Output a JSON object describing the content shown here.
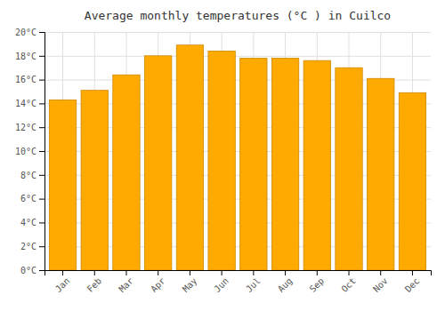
{
  "chart_data": {
    "type": "bar",
    "title": "Average monthly temperatures (°C ) in Cuilco",
    "categories": [
      "Jan",
      "Feb",
      "Mar",
      "Apr",
      "May",
      "Jun",
      "Jul",
      "Aug",
      "Sep",
      "Oct",
      "Nov",
      "Dec"
    ],
    "values": [
      14.3,
      15.1,
      16.4,
      18.0,
      18.9,
      18.4,
      17.8,
      17.8,
      17.6,
      17.0,
      16.1,
      14.9
    ],
    "color": "#FFAA00",
    "ylim": [
      0,
      20
    ],
    "yticks": [
      {
        "value": 0,
        "label": "0°C"
      },
      {
        "value": 2,
        "label": "2°C"
      },
      {
        "value": 4,
        "label": "4°C"
      },
      {
        "value": 6,
        "label": "6°C"
      },
      {
        "value": 8,
        "label": "8°C"
      },
      {
        "value": 10,
        "label": "10°C"
      },
      {
        "value": 12,
        "label": "12°C"
      },
      {
        "value": 14,
        "label": "14°C"
      },
      {
        "value": 16,
        "label": "16°C"
      },
      {
        "value": 18,
        "label": "18°C"
      },
      {
        "value": 20,
        "label": "20°C"
      }
    ],
    "grid": true
  }
}
